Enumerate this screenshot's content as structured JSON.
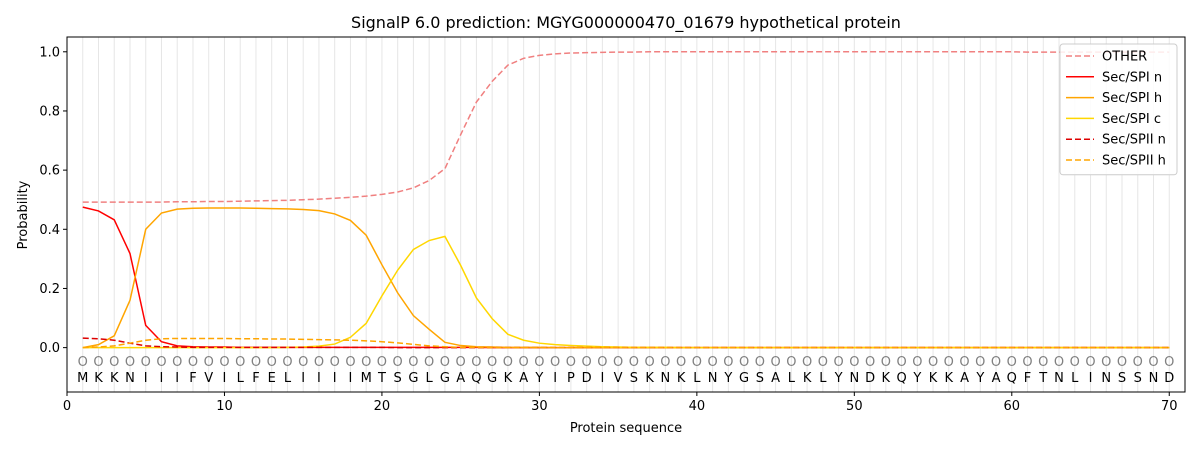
{
  "chart_data": {
    "type": "line",
    "title": "SignalP 6.0 prediction: MGYG000000470_01679 hypothetical protein",
    "xlabel": "Protein sequence",
    "ylabel": "Probability",
    "xlim": [
      0,
      71
    ],
    "ylim": [
      -0.15,
      1.05
    ],
    "x_ticks": [
      0,
      10,
      20,
      30,
      40,
      50,
      60,
      70
    ],
    "y_ticks": [
      0.0,
      0.2,
      0.4,
      0.6,
      0.8,
      1.0
    ],
    "x_tick_labels": [
      "0",
      "10",
      "20",
      "30",
      "40",
      "50",
      "60",
      "70"
    ],
    "y_tick_labels": [
      "0.0",
      "0.2",
      "0.4",
      "0.6",
      "0.8",
      "1.0"
    ],
    "grid": "vertical",
    "legend_position": "top-right",
    "sequence": [
      "M",
      "K",
      "K",
      "N",
      "I",
      "I",
      "I",
      "F",
      "V",
      "I",
      "L",
      "F",
      "E",
      "L",
      "I",
      "I",
      "I",
      "I",
      "M",
      "T",
      "S",
      "G",
      "L",
      "G",
      "A",
      "Q",
      "G",
      "K",
      "A",
      "Y",
      "I",
      "P",
      "D",
      "I",
      "V",
      "S",
      "K",
      "N",
      "K",
      "L",
      "N",
      "Y",
      "G",
      "S",
      "A",
      "L",
      "K",
      "L",
      "Y",
      "N",
      "D",
      "K",
      "Q",
      "Y",
      "K",
      "K",
      "A",
      "Y",
      "A",
      "Q",
      "F",
      "T",
      "N",
      "L",
      "I",
      "N",
      "S",
      "S",
      "N",
      "D"
    ],
    "region_marker": "O",
    "series": [
      {
        "name": "OTHER",
        "color": "#f08080",
        "dashed": true,
        "values": [
          0.492,
          0.492,
          0.492,
          0.492,
          0.492,
          0.492,
          0.493,
          0.493,
          0.494,
          0.494,
          0.495,
          0.496,
          0.497,
          0.498,
          0.5,
          0.502,
          0.505,
          0.508,
          0.512,
          0.518,
          0.526,
          0.54,
          0.565,
          0.605,
          0.72,
          0.83,
          0.9,
          0.955,
          0.978,
          0.988,
          0.993,
          0.996,
          0.997,
          0.998,
          0.999,
          0.999,
          1.0,
          1.0,
          1.0,
          1.0,
          1.0,
          1.0,
          1.0,
          1.0,
          1.0,
          1.0,
          1.0,
          1.0,
          1.0,
          1.0,
          1.0,
          1.0,
          1.0,
          1.0,
          1.0,
          1.0,
          1.0,
          1.0,
          1.0,
          1.0,
          0.999,
          0.999,
          0.999,
          0.999,
          0.999,
          0.999,
          0.999,
          0.999,
          0.999,
          0.999
        ]
      },
      {
        "name": "Sec/SPI n",
        "color": "#ff0000",
        "dashed": false,
        "values": [
          0.475,
          0.462,
          0.432,
          0.318,
          0.075,
          0.02,
          0.006,
          0.003,
          0.002,
          0.002,
          0.001,
          0.001,
          0.001,
          0.001,
          0.001,
          0.001,
          0.001,
          0.001,
          0.001,
          0.001,
          0.001,
          0.001,
          0.001,
          0.001,
          0.001,
          0.001,
          0.0,
          0.0,
          0.0,
          0.0,
          0.0,
          0.0,
          0.0,
          0.0,
          0.0,
          0.0,
          0.0,
          0.0,
          0.0,
          0.0,
          0.0,
          0.0,
          0.0,
          0.0,
          0.0,
          0.0,
          0.0,
          0.0,
          0.0,
          0.0,
          0.0,
          0.0,
          0.0,
          0.0,
          0.0,
          0.0,
          0.0,
          0.0,
          0.0,
          0.0,
          0.0,
          0.0,
          0.0,
          0.0,
          0.0,
          0.0,
          0.0,
          0.0,
          0.0,
          0.0
        ]
      },
      {
        "name": "Sec/SPI h",
        "color": "#ffa500",
        "dashed": false,
        "values": [
          0.0,
          0.01,
          0.04,
          0.16,
          0.4,
          0.455,
          0.468,
          0.471,
          0.472,
          0.472,
          0.472,
          0.471,
          0.47,
          0.469,
          0.467,
          0.463,
          0.452,
          0.43,
          0.38,
          0.28,
          0.185,
          0.108,
          0.062,
          0.018,
          0.007,
          0.003,
          0.002,
          0.001,
          0.001,
          0.001,
          0.0,
          0.0,
          0.0,
          0.0,
          0.0,
          0.0,
          0.0,
          0.0,
          0.0,
          0.0,
          0.0,
          0.0,
          0.0,
          0.0,
          0.0,
          0.0,
          0.0,
          0.0,
          0.0,
          0.0,
          0.0,
          0.0,
          0.0,
          0.0,
          0.0,
          0.0,
          0.0,
          0.0,
          0.0,
          0.0,
          0.0,
          0.0,
          0.0,
          0.0,
          0.0,
          0.0,
          0.0,
          0.0,
          0.0,
          0.0
        ]
      },
      {
        "name": "Sec/SPI c",
        "color": "#ffd700",
        "dashed": false,
        "values": [
          0.0,
          0.0,
          0.0,
          0.0,
          0.0,
          0.0,
          0.0,
          0.0,
          0.0,
          0.0,
          0.0,
          0.0,
          0.0,
          0.001,
          0.002,
          0.005,
          0.012,
          0.035,
          0.082,
          0.175,
          0.262,
          0.332,
          0.362,
          0.376,
          0.278,
          0.168,
          0.098,
          0.045,
          0.025,
          0.015,
          0.01,
          0.007,
          0.005,
          0.003,
          0.002,
          0.001,
          0.001,
          0.001,
          0.0,
          0.0,
          0.0,
          0.0,
          0.0,
          0.0,
          0.0,
          0.0,
          0.0,
          0.0,
          0.0,
          0.0,
          0.0,
          0.0,
          0.0,
          0.0,
          0.0,
          0.0,
          0.0,
          0.0,
          0.0,
          0.0,
          0.0,
          0.0,
          0.0,
          0.0,
          0.0,
          0.0,
          0.0,
          0.0,
          0.0,
          0.0
        ]
      },
      {
        "name": "Sec/SPII n",
        "color": "#dd0000",
        "dashed": true,
        "values": [
          0.032,
          0.03,
          0.025,
          0.015,
          0.006,
          0.003,
          0.002,
          0.001,
          0.001,
          0.001,
          0.001,
          0.001,
          0.001,
          0.001,
          0.001,
          0.001,
          0.001,
          0.001,
          0.001,
          0.001,
          0.0,
          0.0,
          0.0,
          0.0,
          0.0,
          0.0,
          0.0,
          0.0,
          0.0,
          0.0,
          0.0,
          0.0,
          0.0,
          0.0,
          0.0,
          0.0,
          0.0,
          0.0,
          0.0,
          0.0,
          0.0,
          0.0,
          0.0,
          0.0,
          0.0,
          0.0,
          0.0,
          0.0,
          0.0,
          0.0,
          0.0,
          0.0,
          0.0,
          0.0,
          0.0,
          0.0,
          0.0,
          0.0,
          0.0,
          0.0,
          0.0,
          0.0,
          0.0,
          0.0,
          0.0,
          0.0,
          0.0,
          0.0,
          0.0,
          0.0
        ]
      },
      {
        "name": "Sec/SPII h",
        "color": "#ffa500",
        "dashed": true,
        "values": [
          0.0,
          0.002,
          0.006,
          0.015,
          0.025,
          0.03,
          0.031,
          0.031,
          0.031,
          0.031,
          0.03,
          0.03,
          0.029,
          0.029,
          0.028,
          0.027,
          0.026,
          0.025,
          0.023,
          0.02,
          0.016,
          0.011,
          0.006,
          0.003,
          0.001,
          0.001,
          0.0,
          0.0,
          0.0,
          0.0,
          0.0,
          0.0,
          0.0,
          0.0,
          0.0,
          0.0,
          0.0,
          0.0,
          0.0,
          0.0,
          0.0,
          0.0,
          0.0,
          0.0,
          0.0,
          0.0,
          0.0,
          0.0,
          0.0,
          0.0,
          0.0,
          0.0,
          0.0,
          0.0,
          0.0,
          0.0,
          0.0,
          0.0,
          0.0,
          0.0,
          0.0,
          0.0,
          0.0,
          0.0,
          0.0,
          0.0,
          0.0,
          0.0,
          0.0,
          0.0
        ]
      }
    ]
  }
}
